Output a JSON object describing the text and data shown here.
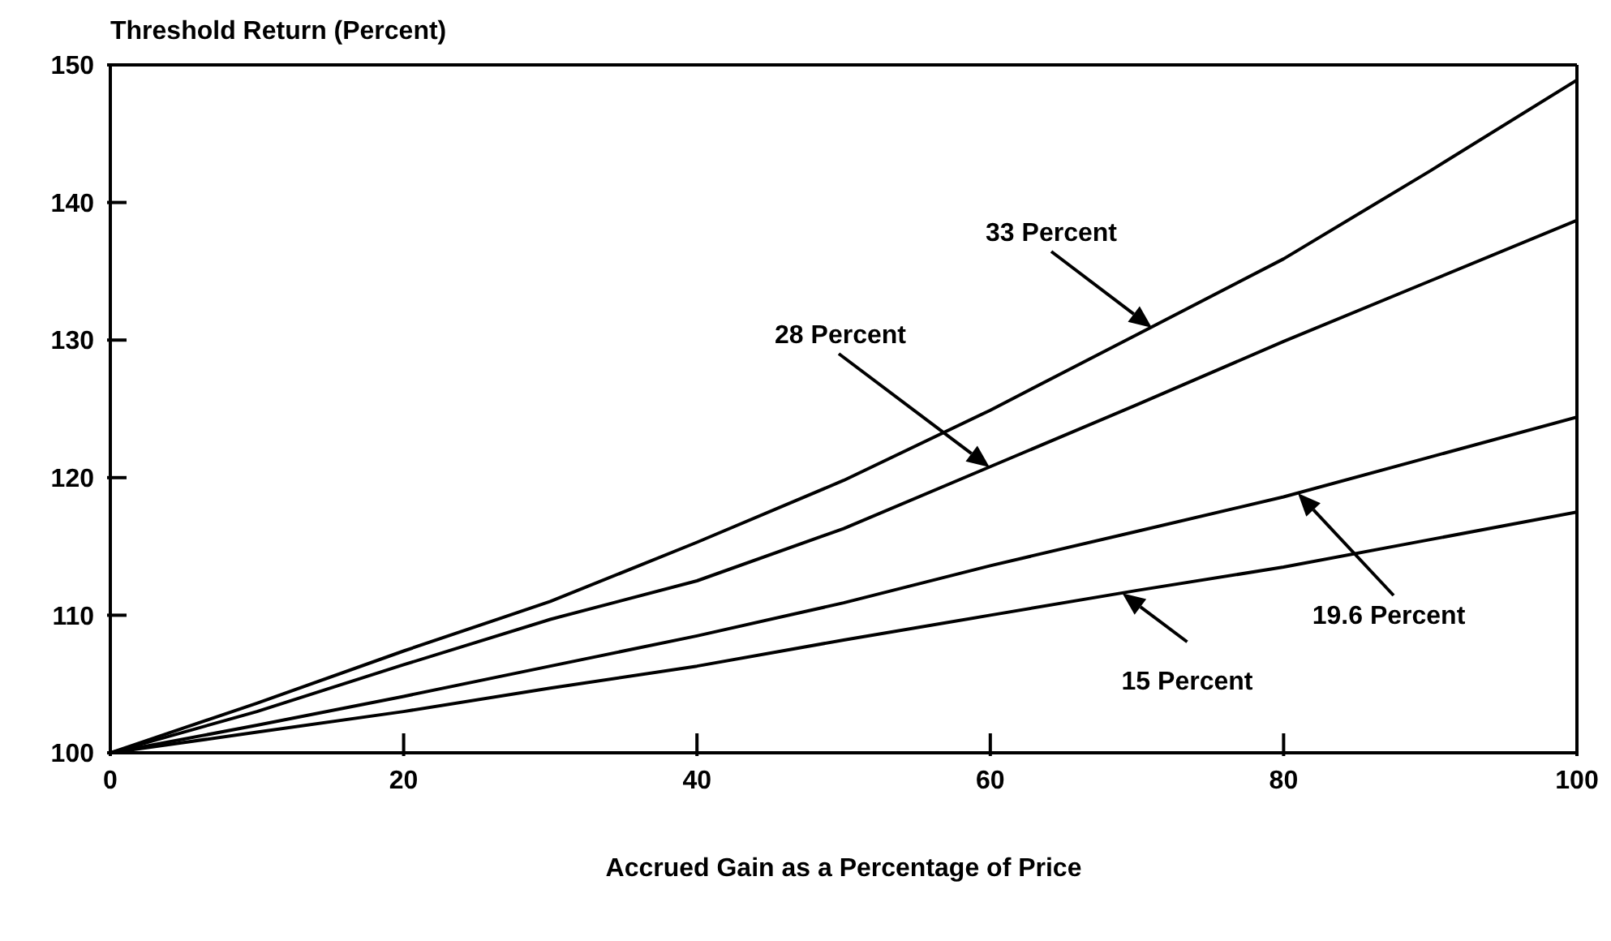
{
  "chart_data": {
    "type": "line",
    "ylabel": "Threshold Return (Percent)",
    "xlabel": "Accrued Gain as a Percentage of Price",
    "x": [
      0,
      10,
      20,
      30,
      40,
      50,
      60,
      70,
      80,
      90,
      100
    ],
    "series": [
      {
        "color": "#000000",
        "values": [
          100,
          103.6,
          107.4,
          111,
          115.3,
          119.8,
          124.9,
          130.4,
          135.9,
          142.3,
          148.9
        ]
      },
      {
        "color": "#000000",
        "values": [
          100,
          103,
          106.4,
          109.7,
          112.5,
          116.3,
          120.8,
          125.3,
          129.9,
          134.3,
          138.7
        ]
      },
      {
        "color": "#000000",
        "values": [
          100,
          102,
          104.1,
          106.3,
          108.5,
          110.9,
          113.6,
          116.1,
          118.6,
          121.5,
          124.4
        ]
      },
      {
        "color": "#000000",
        "values": [
          100,
          101.5,
          103,
          104.7,
          106.3,
          108.2,
          110,
          111.8,
          113.5,
          115.5,
          117.5
        ]
      }
    ],
    "annotations": [
      "33 Percent",
      "28 Percent",
      "19.6 Percent",
      {
        "text": "15 Percent",
        "x": 69,
        "y": 111.6
      }
    ],
    "xlim": [
      0,
      100
    ],
    "xticks": [
      0,
      20,
      40,
      60,
      80,
      100
    ],
    "ylim": [
      100,
      150
    ],
    "yticks": [
      100,
      110,
      120,
      130,
      140,
      150
    ],
    "grid": false,
    "legend": false,
    "marker": "none",
    "line_style": "solid"
  }
}
